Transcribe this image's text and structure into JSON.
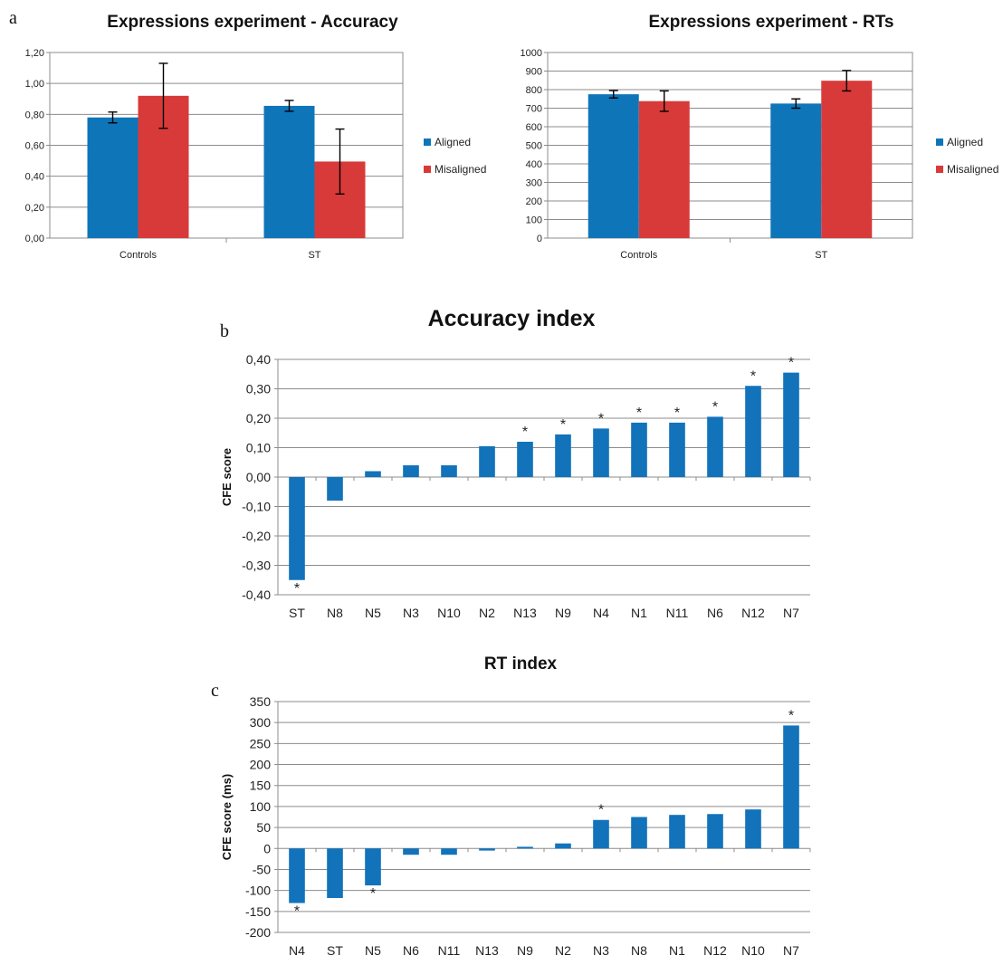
{
  "colors": {
    "aligned": "#0f75b9",
    "misaligned": "#d83a3a",
    "bar": "#1273bb"
  },
  "chart_data": [
    {
      "panel": "a",
      "type": "bar",
      "title": "Expressions experiment - Accuracy",
      "categories": [
        "Controls",
        "ST"
      ],
      "series": [
        {
          "name": "Aligned",
          "values": [
            0.78,
            0.855
          ],
          "errors": [
            0.035,
            0.035
          ]
        },
        {
          "name": "Misaligned",
          "values": [
            0.92,
            0.495
          ],
          "errors": [
            0.21,
            0.21
          ]
        }
      ],
      "ylim": [
        0,
        1.2
      ],
      "yticks": [
        "0,00",
        "0,20",
        "0,40",
        "0,60",
        "0,80",
        "1,00",
        "1,20"
      ],
      "legend": "right",
      "grid": true
    },
    {
      "panel": "a",
      "type": "bar",
      "title": "Expressions experiment - RTs",
      "categories": [
        "Controls",
        "ST"
      ],
      "series": [
        {
          "name": "Aligned",
          "values": [
            775,
            725
          ],
          "errors": [
            20,
            25
          ]
        },
        {
          "name": "Misaligned",
          "values": [
            738,
            848
          ],
          "errors": [
            55,
            55
          ]
        }
      ],
      "ylim": [
        0,
        1000
      ],
      "yticks": [
        "0",
        "100",
        "200",
        "300",
        "400",
        "500",
        "600",
        "700",
        "800",
        "900",
        "1000"
      ],
      "legend": "right",
      "grid": true
    },
    {
      "panel": "b",
      "type": "bar",
      "title": "Accuracy index",
      "ylabel": "CFE score",
      "categories": [
        "ST",
        "N8",
        "N5",
        "N3",
        "N10",
        "N2",
        "N13",
        "N9",
        "N4",
        "N1",
        "N11",
        "N6",
        "N12",
        "N7"
      ],
      "values": [
        -0.35,
        -0.08,
        0.02,
        0.04,
        0.04,
        0.105,
        0.12,
        0.145,
        0.165,
        0.185,
        0.185,
        0.205,
        0.31,
        0.355
      ],
      "significant": [
        true,
        false,
        false,
        false,
        false,
        false,
        true,
        true,
        true,
        true,
        true,
        true,
        true,
        true
      ],
      "ylim": [
        -0.4,
        0.4
      ],
      "yticks": [
        "-0,40",
        "-0,30",
        "-0,20",
        "-0,10",
        "0,00",
        "0,10",
        "0,20",
        "0,30",
        "0,40"
      ],
      "grid": true
    },
    {
      "panel": "c",
      "type": "bar",
      "title": "RT index",
      "ylabel": "CFE score (ms)",
      "categories": [
        "N4",
        "ST",
        "N5",
        "N6",
        "N11",
        "N13",
        "N9",
        "N2",
        "N3",
        "N8",
        "N1",
        "N12",
        "N10",
        "N7"
      ],
      "values": [
        -130,
        -118,
        -88,
        -15,
        -15,
        -5,
        4,
        12,
        68,
        75,
        80,
        82,
        93,
        293
      ],
      "significant": [
        true,
        false,
        true,
        false,
        false,
        false,
        false,
        false,
        true,
        false,
        false,
        false,
        false,
        true
      ],
      "ylim": [
        -200,
        350
      ],
      "yticks": [
        "-200",
        "-150",
        "-100",
        "-50",
        "0",
        "50",
        "100",
        "150",
        "200",
        "250",
        "300",
        "350"
      ],
      "grid": true
    }
  ],
  "panel_labels": [
    "a",
    "b",
    "c"
  ],
  "significance_marker": "*"
}
